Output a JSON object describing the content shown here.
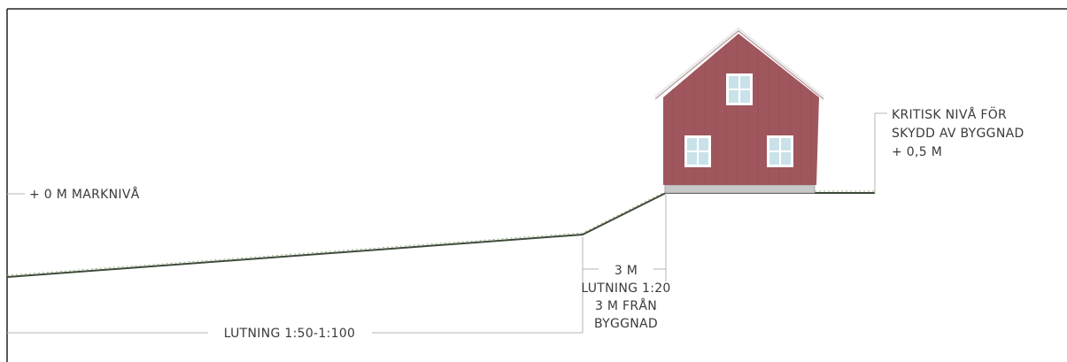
{
  "labels": {
    "ground_level": "+ 0 M MARKNIVÅ",
    "critical_level": [
      "KRITISK NIVÅ FÖR",
      "SKYDD AV BYGGNAD",
      "+ 0,5 M"
    ],
    "slope_far": "LUTNING 1:50-1:100",
    "distance": "3 M",
    "slope_near": [
      "LUTNING 1:20",
      "3 M FRÅN",
      "BYGGNAD"
    ]
  },
  "colors": {
    "house_wall": "#a0565d",
    "roof_edge": "#ececec",
    "window_frame": "#ffffff",
    "window_glass": "#c9e2ea",
    "ground_line": "#3d4a3a",
    "plinth": "#c8c8c8",
    "dimension_line": "#b5b5b5",
    "border": "#222222"
  }
}
